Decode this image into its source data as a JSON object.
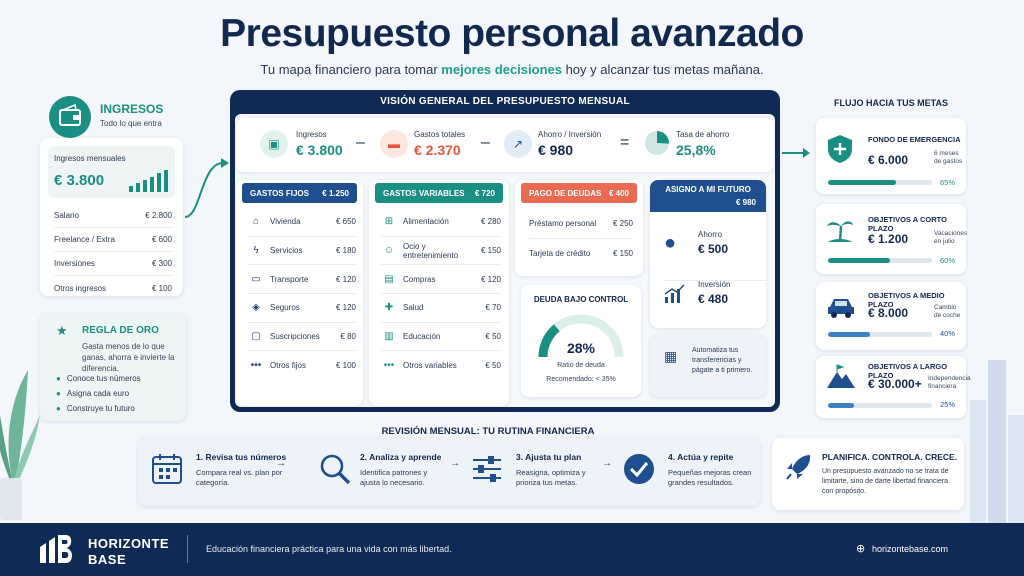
{
  "header": {
    "title": "Presupuesto personal avanzado",
    "subtitle_pre": "Tu mapa financiero para tomar ",
    "subtitle_hl": "mejores decisiones",
    "subtitle_post": " hoy y alcanzar tus metas mañana."
  },
  "ingresos": {
    "title": "INGRESOS",
    "subtitle": "Todo lo que entra",
    "monthly_label": "Ingresos mensuales",
    "monthly_value": "€ 3.800",
    "items": [
      {
        "label": "Salario",
        "value": "€ 2.800"
      },
      {
        "label": "Freelance / Extra",
        "value": "€ 600"
      },
      {
        "label": "Inversiones",
        "value": "€ 300"
      },
      {
        "label": "Otros ingresos",
        "value": "€ 100"
      }
    ]
  },
  "regla": {
    "title": "REGLA DE ORO",
    "text": "Gasta menos de lo que ganas, ahorra e invierte la diferencia.",
    "checks": [
      "Conoce tus números",
      "Asigna cada euro",
      "Construye tu futuro"
    ]
  },
  "overview": {
    "title": "VISIÓN GENERAL DEL PRESUPUESTO MENSUAL",
    "summary": [
      {
        "label": "Ingresos",
        "value": "€ 3.800"
      },
      {
        "label": "Gastos totales",
        "value": "€ 2.370"
      },
      {
        "label": "Ahorro / Inversión",
        "value": "€ 980"
      },
      {
        "label": "Tasa de ahorro",
        "value": "25,8%"
      }
    ],
    "ops": [
      "–",
      "–",
      "="
    ],
    "savings_rate": 25.8
  },
  "gastos_fijos": {
    "title": "GASTOS FIJOS",
    "total": "€ 1.250",
    "items": [
      {
        "label": "Vivienda",
        "value": "€ 650"
      },
      {
        "label": "Servicios",
        "value": "€ 180"
      },
      {
        "label": "Transporte",
        "value": "€ 120"
      },
      {
        "label": "Seguros",
        "value": "€ 120"
      },
      {
        "label": "Suscripciones",
        "value": "€ 80"
      },
      {
        "label": "Otros fijos",
        "value": "€ 100"
      }
    ]
  },
  "gastos_variables": {
    "title": "GASTOS VARIABLES",
    "total": "€ 720",
    "items": [
      {
        "label": "Alimentación",
        "value": "€ 280"
      },
      {
        "label": "Ocio y entretenimiento",
        "value": "€ 150"
      },
      {
        "label": "Compras",
        "value": "€ 120"
      },
      {
        "label": "Salud",
        "value": "€ 70"
      },
      {
        "label": "Educación",
        "value": "€ 50"
      },
      {
        "label": "Otros variables",
        "value": "€ 50"
      }
    ]
  },
  "deudas": {
    "title": "PAGO DE DEUDAS",
    "total": "€ 400",
    "items": [
      {
        "label": "Préstamo personal",
        "value": "€ 250"
      },
      {
        "label": "Tarjeta de crédito",
        "value": "€ 150"
      }
    ],
    "control_title": "DEUDA BAJO CONTROL",
    "ratio_value": "28%",
    "ratio_label": "Ratio de deuda",
    "recommended": "Recomendado: < 35%",
    "ratio_fraction": 0.28
  },
  "futuro": {
    "title": "ASIGNO A MI FUTURO",
    "total": "€ 980",
    "ahorro_label": "Ahorro",
    "ahorro_value": "€ 500",
    "inversion_label": "Inversión",
    "inversion_value": "€ 480",
    "auto_text": "Automatiza tus transferencias y págate a ti primero."
  },
  "metas": {
    "title": "FLUJO HACIA TUS METAS",
    "items": [
      {
        "title": "FONDO DE EMERGENCIA",
        "value": "€ 6.000",
        "note": "6 meses de gastos",
        "pct": "65%",
        "fill": 65,
        "color": "#1b8f83"
      },
      {
        "title": "OBJETIVOS A CORTO PLAZO",
        "value": "€ 1.200",
        "note": "Vacaciones en julio",
        "pct": "60%",
        "fill": 60,
        "color": "#1b8f83"
      },
      {
        "title": "OBJETIVOS A MEDIO PLAZO",
        "value": "€ 8.000",
        "note": "Cambio de coche",
        "pct": "40%",
        "fill": 40,
        "color": "#3b82c4"
      },
      {
        "title": "OBJETIVOS A LARGO PLAZO",
        "value": "€ 30.000+",
        "note": "Independencia financiera",
        "pct": "25%",
        "fill": 25,
        "color": "#3b82c4"
      }
    ]
  },
  "revision": {
    "title": "REVISIÓN MENSUAL: TU RUTINA FINANCIERA",
    "steps": [
      {
        "title": "1. Revisa tus números",
        "text": "Compara real vs. plan por categoría."
      },
      {
        "title": "2. Analiza y aprende",
        "text": "Identifica patrones y ajusta lo necesario."
      },
      {
        "title": "3. Ajusta tu plan",
        "text": "Reasigna, optimiza y prioriza tus metas."
      },
      {
        "title": "4. Actúa y repite",
        "text": "Pequeñas mejoras crean grandes resultados."
      }
    ]
  },
  "planifica": {
    "title": "PLANIFICA. CONTROLA. CRECE.",
    "text": "Un presupuesto avanzado no se trata de limitarte, sino de darte libertad financiera con propósito."
  },
  "footer": {
    "brand_1": "HORIZONTE",
    "brand_2": "BASE",
    "tagline": "Educación financiera práctica para una vida con más libertad.",
    "website": "horizontebase.com"
  }
}
